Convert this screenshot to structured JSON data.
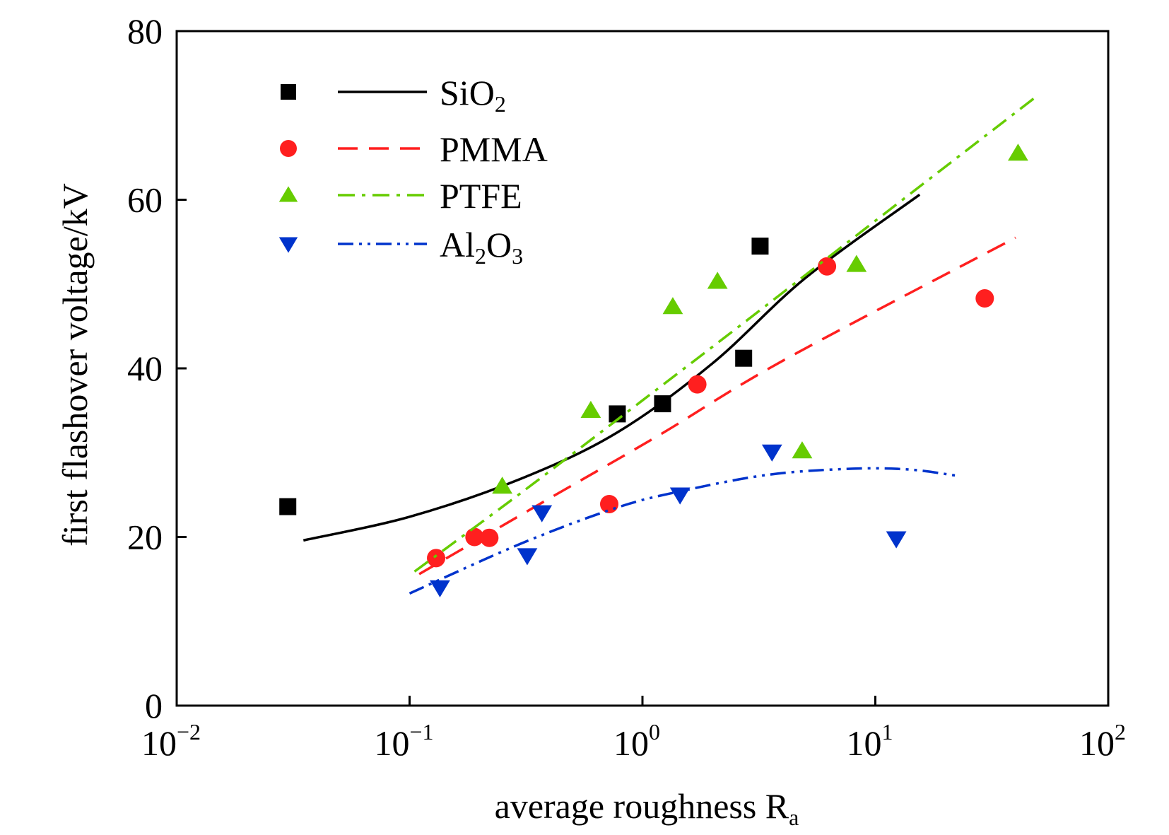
{
  "chart_data": {
    "type": "scatter",
    "title": "",
    "xlabel": "average roughness R",
    "xlabel_subscript": "a",
    "ylabel": "first flashover voltage/kV",
    "xscale": "log",
    "xlim": [
      0.01,
      100
    ],
    "ylim": [
      0,
      80
    ],
    "x_ticks": [
      {
        "base": "10",
        "exp": "−2"
      },
      {
        "base": "10",
        "exp": "−1"
      },
      {
        "base": "10",
        "exp": "0"
      },
      {
        "base": "10",
        "exp": "1"
      },
      {
        "base": "10",
        "exp": "2"
      }
    ],
    "y_ticks": [
      "0",
      "20",
      "40",
      "60",
      "80"
    ],
    "grid": false,
    "legend_position": "top-left",
    "series": [
      {
        "name": "SiO",
        "name_subscript": "2",
        "name_rest": "",
        "color": "#000000",
        "marker": "square",
        "line_style": "solid",
        "points": [
          [
            0.03,
            23.6
          ],
          [
            0.78,
            34.6
          ],
          [
            1.22,
            35.8
          ],
          [
            2.72,
            41.2
          ],
          [
            3.2,
            54.5
          ]
        ],
        "fit": [
          [
            0.035,
            19.6
          ],
          [
            0.1,
            22.4
          ],
          [
            0.3,
            26.9
          ],
          [
            0.78,
            32.4
          ],
          [
            2.0,
            40.6
          ],
          [
            5.0,
            50.7
          ],
          [
            15.5,
            60.6
          ]
        ]
      },
      {
        "name": "PMMA",
        "color": "#ff1f1f",
        "marker": "circle",
        "line_style": "dashed",
        "points": [
          [
            0.13,
            17.5
          ],
          [
            0.19,
            20.0
          ],
          [
            0.22,
            19.9
          ],
          [
            0.72,
            23.9
          ],
          [
            1.72,
            38.1
          ],
          [
            6.2,
            52.1
          ],
          [
            29.5,
            48.3
          ]
        ],
        "fit": [
          [
            0.11,
            15.6
          ],
          [
            0.4,
            24.6
          ],
          [
            1.2,
            32.2
          ],
          [
            4.0,
            40.9
          ],
          [
            40.0,
            55.5
          ]
        ]
      },
      {
        "name": "PTFE",
        "color": "#66cc00",
        "marker": "triangle-up",
        "line_style": "dashdot",
        "points": [
          [
            0.25,
            26.0
          ],
          [
            0.6,
            35.0
          ],
          [
            1.35,
            47.3
          ],
          [
            2.1,
            50.3
          ],
          [
            4.85,
            30.2
          ],
          [
            8.3,
            52.3
          ],
          [
            41.0,
            65.5
          ]
        ],
        "fit": [
          [
            0.105,
            15.9
          ],
          [
            0.3,
            25.2
          ],
          [
            1.0,
            36.2
          ],
          [
            3.0,
            46.3
          ],
          [
            10.0,
            57.5
          ],
          [
            50.0,
            72.4
          ]
        ]
      },
      {
        "name": "Al",
        "name_subscript": "2",
        "name_rest": "O",
        "name_subscript2": "3",
        "color": "#0033cc",
        "marker": "triangle-down",
        "line_style": "dashdotdot",
        "points": [
          [
            0.135,
            14.0
          ],
          [
            0.32,
            17.8
          ],
          [
            0.37,
            22.9
          ],
          [
            1.45,
            25.0
          ],
          [
            3.6,
            30.1
          ],
          [
            12.3,
            19.8
          ]
        ],
        "fit": [
          [
            0.1,
            13.3
          ],
          [
            0.3,
            19.2
          ],
          [
            0.78,
            23.5
          ],
          [
            1.5,
            25.5
          ],
          [
            3.5,
            27.4
          ],
          [
            8.0,
            28.1
          ],
          [
            14.0,
            28.0
          ],
          [
            22.0,
            27.3
          ]
        ]
      }
    ]
  }
}
